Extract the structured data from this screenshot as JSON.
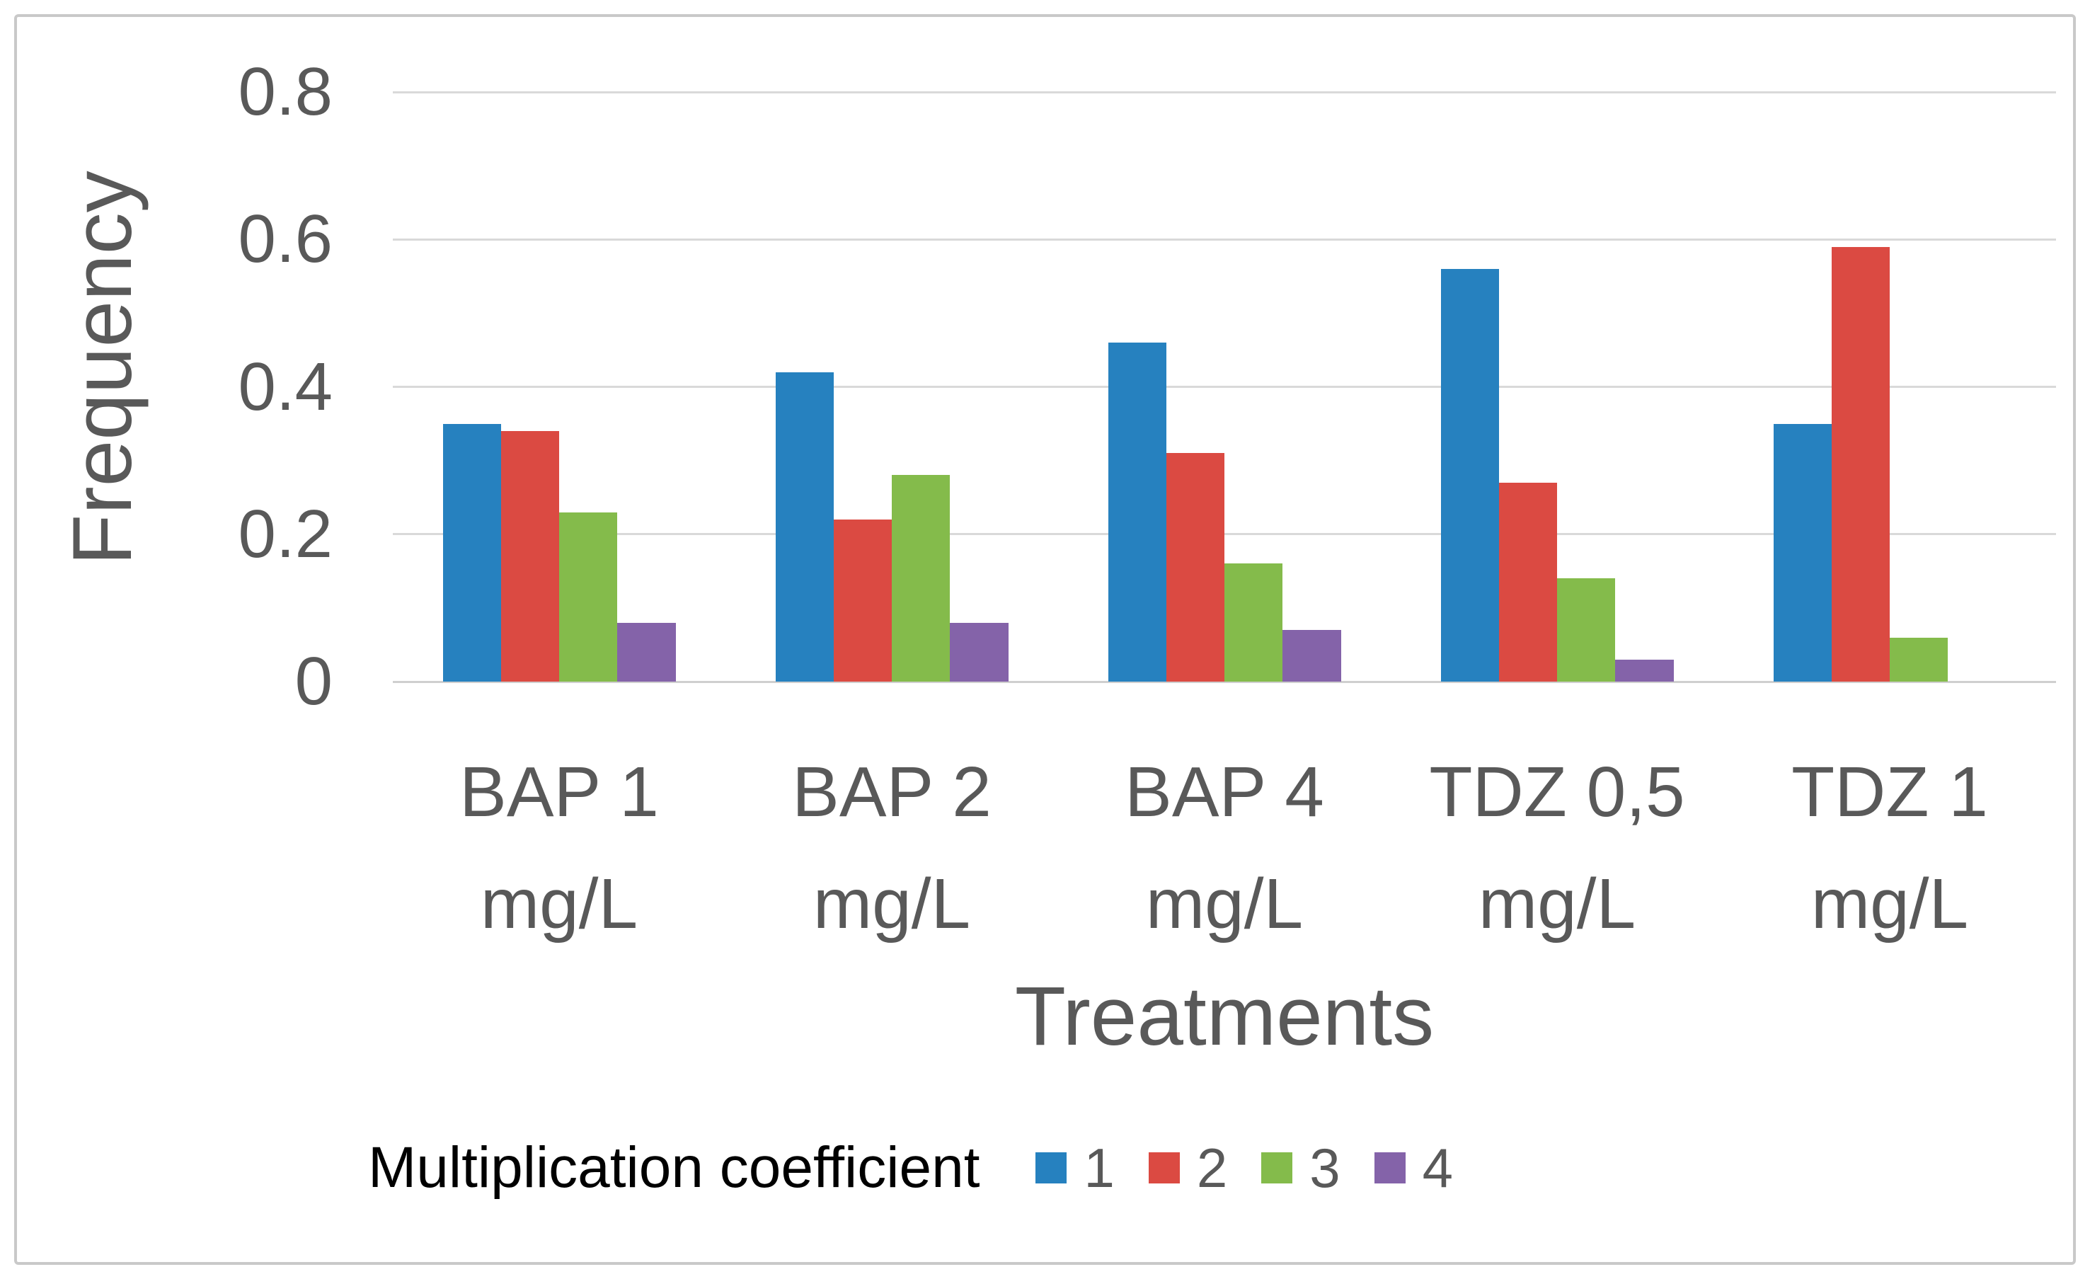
{
  "figure": {
    "background": "#ffffff",
    "border_color": "#c9c9c9"
  },
  "chart_data": {
    "type": "bar",
    "title": "",
    "ylabel": "Frequency",
    "xlabel": "Treatments",
    "ylim": [
      0,
      0.8
    ],
    "ytick_labels": [
      "0.8",
      "0.6",
      "0.4",
      "0.2",
      "0"
    ],
    "grid": true,
    "legend_position": "bottom",
    "legend_title": "Multiplication coefficient",
    "categories": [
      {
        "top": "BAP 1",
        "bottom": "mg/L"
      },
      {
        "top": "BAP 2",
        "bottom": "mg/L"
      },
      {
        "top": "BAP 4",
        "bottom": "mg/L"
      },
      {
        "top": "TDZ 0,5",
        "bottom": "mg/L"
      },
      {
        "top": "TDZ 1",
        "bottom": "mg/L"
      }
    ],
    "series": [
      {
        "name": "1",
        "color": "#2681bf",
        "values": [
          0.35,
          0.42,
          0.46,
          0.56,
          0.35
        ]
      },
      {
        "name": "2",
        "color": "#db4a42",
        "values": [
          0.34,
          0.22,
          0.31,
          0.27,
          0.59
        ]
      },
      {
        "name": "3",
        "color": "#84bb4b",
        "values": [
          0.23,
          0.28,
          0.16,
          0.14,
          0.06
        ]
      },
      {
        "name": "4",
        "color": "#8463a9",
        "values": [
          0.08,
          0.08,
          0.07,
          0.03,
          0
        ]
      }
    ],
    "colors": {
      "text": "#595959",
      "legend_title_text": "#000000",
      "gridline": "#d9d9d9",
      "axis_line": "#cfcfcf"
    }
  }
}
